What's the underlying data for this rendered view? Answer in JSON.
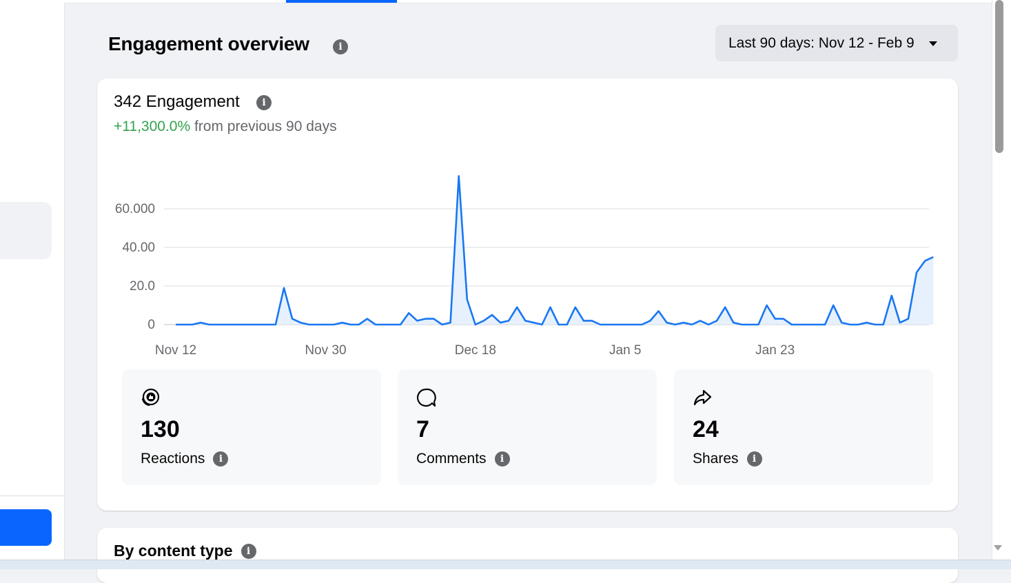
{
  "header": {
    "title": "Engagement overview",
    "date_range": "Last 90 days: Nov 12 - Feb 9"
  },
  "engagement_card": {
    "heading": "342 Engagement",
    "change_percent": "+11,300.0%",
    "change_suffix": "from previous 90 days"
  },
  "chart_data": {
    "type": "area",
    "xlabel": "",
    "ylabel": "",
    "y_ticks": [
      "0",
      "20.0",
      "40.00",
      "60.000"
    ],
    "x_ticks": [
      "Nov 12",
      "Nov 30",
      "Dec 18",
      "Jan 5",
      "Jan 23"
    ],
    "ylim": [
      0,
      60
    ],
    "x_start": "Nov 12",
    "values": [
      0,
      0,
      0,
      1,
      0,
      0,
      0,
      0,
      0,
      0,
      0,
      0,
      0,
      19,
      3,
      1,
      0,
      0,
      0,
      0,
      1,
      0,
      0,
      3,
      0,
      0,
      0,
      0,
      6,
      2,
      3,
      3,
      0,
      1,
      77,
      13,
      0,
      2,
      5,
      1,
      2,
      9,
      2,
      1,
      0,
      9,
      0,
      0,
      9,
      2,
      2,
      0,
      0,
      0,
      0,
      0,
      0,
      2,
      7,
      1,
      0,
      1,
      0,
      2,
      0,
      2,
      9,
      1,
      0,
      0,
      0,
      10,
      3,
      3,
      0,
      0,
      0,
      0,
      0,
      10,
      1,
      0,
      0,
      1,
      0,
      0,
      15,
      1,
      3,
      27,
      33,
      35
    ],
    "line_color": "#1877f2",
    "fill_color": "#e7f0fd",
    "grid": true
  },
  "metrics": [
    {
      "icon": "reactions-icon",
      "value": "130",
      "label": "Reactions"
    },
    {
      "icon": "comments-icon",
      "value": "7",
      "label": "Comments"
    },
    {
      "icon": "shares-icon",
      "value": "24",
      "label": "Shares"
    }
  ],
  "content_type": {
    "title": "By content type"
  },
  "colors": {
    "accent": "#0866ff",
    "positive": "#31a24c",
    "muted": "#65676b"
  }
}
